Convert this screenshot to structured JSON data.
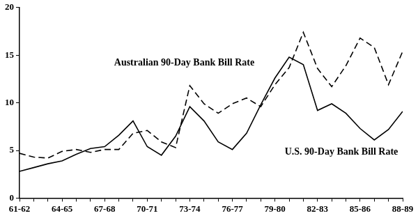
{
  "chart_data": {
    "type": "line",
    "categories": [
      "61-62",
      null,
      null,
      "64-65",
      null,
      null,
      "67-68",
      null,
      null,
      "70-71",
      null,
      null,
      "73-74",
      null,
      null,
      "76-77",
      null,
      null,
      "79-80",
      null,
      null,
      "82-83",
      null,
      null,
      "85-86",
      null,
      null,
      "88-89"
    ],
    "series": [
      {
        "name": "Australian 90-Day Bank Bill Rate",
        "color": "#000000",
        "line_style": "dashed",
        "marker": "none",
        "values": [
          4.7,
          4.3,
          4.2,
          4.9,
          5.1,
          4.8,
          5.1,
          5.1,
          6.8,
          7.1,
          5.9,
          5.3,
          11.8,
          9.9,
          8.9,
          9.9,
          10.5,
          9.6,
          11.9,
          13.7,
          17.4,
          13.6,
          11.7,
          13.9,
          16.8,
          15.8,
          11.9,
          15.4
        ]
      },
      {
        "name": "U.S. 90-Day Bank Bill Rate",
        "color": "#000000",
        "line_style": "solid",
        "marker": "none",
        "values": [
          2.8,
          3.2,
          3.6,
          3.9,
          4.6,
          5.2,
          5.4,
          6.6,
          8.1,
          5.4,
          4.5,
          6.5,
          9.6,
          8.1,
          5.9,
          5.1,
          6.8,
          9.8,
          12.6,
          14.8,
          14.0,
          9.2,
          9.9,
          8.9,
          7.3,
          6.1,
          7.2,
          9.1
        ]
      }
    ],
    "ylim": [
      0,
      20
    ],
    "yticks": [
      0,
      5,
      10,
      15,
      20
    ],
    "grid": false
  }
}
